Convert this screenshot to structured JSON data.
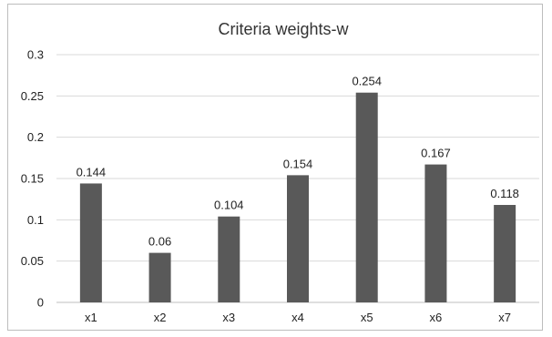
{
  "chart_data": {
    "type": "bar",
    "title": "Criteria weights-w",
    "xlabel": "",
    "ylabel": "",
    "categories": [
      "x1",
      "x2",
      "x3",
      "x4",
      "x5",
      "x6",
      "x7"
    ],
    "values": [
      0.144,
      0.06,
      0.104,
      0.154,
      0.254,
      0.167,
      0.118
    ],
    "value_labels": [
      "0.144",
      "0.06",
      "0.104",
      "0.154",
      "0.254",
      "0.167",
      "0.118"
    ],
    "ylim": [
      0,
      0.3
    ],
    "yticks": [
      0,
      0.05,
      0.1,
      0.15,
      0.2,
      0.25,
      0.3
    ],
    "ytick_labels": [
      "0",
      "0.05",
      "0.1",
      "0.15",
      "0.2",
      "0.25",
      "0.3"
    ],
    "grid": true,
    "legend": "none",
    "bar_color": "#595959"
  }
}
